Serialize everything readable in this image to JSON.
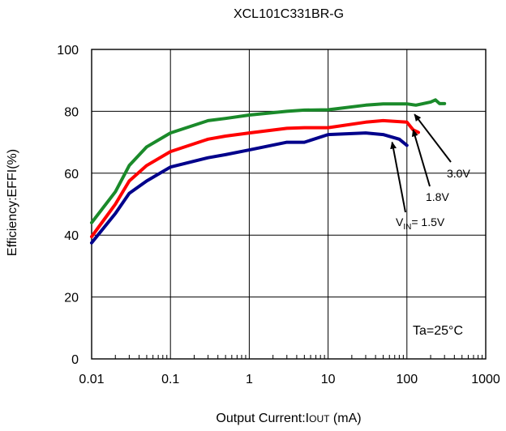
{
  "chart_data": {
    "type": "line",
    "title": "XCL101C331BR-G",
    "xlabel_parts": [
      "Output Current:I",
      "OUT",
      " (mA)"
    ],
    "ylabel": "Efficiency:EFFI(%)",
    "x_scale": "log",
    "xlim": [
      0.01,
      1000
    ],
    "ylim": [
      0,
      100
    ],
    "x_ticks": [
      0.01,
      0.1,
      1,
      10,
      100,
      1000
    ],
    "x_tick_labels": [
      "0.01",
      "0.1",
      "1",
      "10",
      "100",
      "1000"
    ],
    "y_ticks": [
      0,
      20,
      40,
      60,
      80,
      100
    ],
    "y_tick_labels": [
      "0",
      "20",
      "40",
      "60",
      "80",
      "100"
    ],
    "grid": true,
    "legend": "none",
    "series": [
      {
        "name": "3.0V",
        "color": "#1a8a2a",
        "points": [
          [
            0.01,
            44
          ],
          [
            0.02,
            54
          ],
          [
            0.03,
            62.5
          ],
          [
            0.05,
            68.5
          ],
          [
            0.1,
            73
          ],
          [
            0.3,
            77
          ],
          [
            0.5,
            77.7
          ],
          [
            1,
            78.8
          ],
          [
            3,
            80
          ],
          [
            5,
            80.4
          ],
          [
            10,
            80.5
          ],
          [
            30,
            82
          ],
          [
            50,
            82.4
          ],
          [
            100,
            82.4
          ],
          [
            130,
            82
          ],
          [
            200,
            83
          ],
          [
            230,
            83.7
          ],
          [
            260,
            82.5
          ],
          [
            300,
            82.5
          ]
        ]
      },
      {
        "name": "1.8V",
        "color": "#ff0000",
        "points": [
          [
            0.01,
            39.5
          ],
          [
            0.02,
            50
          ],
          [
            0.03,
            57.5
          ],
          [
            0.05,
            62.5
          ],
          [
            0.1,
            67
          ],
          [
            0.3,
            71
          ],
          [
            0.5,
            72
          ],
          [
            1,
            73
          ],
          [
            3,
            74.5
          ],
          [
            5,
            74.7
          ],
          [
            10,
            74.7
          ],
          [
            30,
            76.5
          ],
          [
            50,
            77
          ],
          [
            100,
            76.5
          ],
          [
            120,
            74
          ],
          [
            140,
            73.2
          ]
        ]
      },
      {
        "name": "V_IN= 1.5V",
        "color": "#00008b",
        "points": [
          [
            0.01,
            37.5
          ],
          [
            0.02,
            47
          ],
          [
            0.03,
            53.5
          ],
          [
            0.05,
            57.5
          ],
          [
            0.1,
            62
          ],
          [
            0.3,
            65
          ],
          [
            0.5,
            66
          ],
          [
            1,
            67.5
          ],
          [
            3,
            70
          ],
          [
            5,
            70
          ],
          [
            10,
            72.5
          ],
          [
            30,
            73
          ],
          [
            50,
            72.5
          ],
          [
            80,
            71
          ],
          [
            100,
            69
          ]
        ]
      }
    ],
    "annotations": [
      {
        "text": "3.0V",
        "arrow_to": [
          125,
          79
        ]
      },
      {
        "text": "1.8V",
        "arrow_to": [
          120,
          74
        ]
      },
      {
        "text_parts": [
          "V",
          "IN",
          "= 1.5V"
        ],
        "arrow_to": [
          65,
          70
        ]
      },
      {
        "text": "Ta=25°C"
      }
    ]
  }
}
